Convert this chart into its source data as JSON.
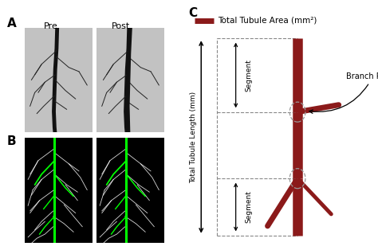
{
  "panel_A_label": "A",
  "panel_B_label": "B",
  "panel_C_label": "C",
  "pre_label": "Pre",
  "post_label": "Post",
  "legend_text": "Total Tubule Area (mm²)",
  "ylabel": "Total Tubule Length (mm)",
  "segment_label": "Segment",
  "branch_points_label": "Branch Points",
  "dark_red": "#8B1A1A",
  "background": "#ffffff",
  "gray_img_A": "#c2c2c2",
  "dashed_color": "#888888"
}
